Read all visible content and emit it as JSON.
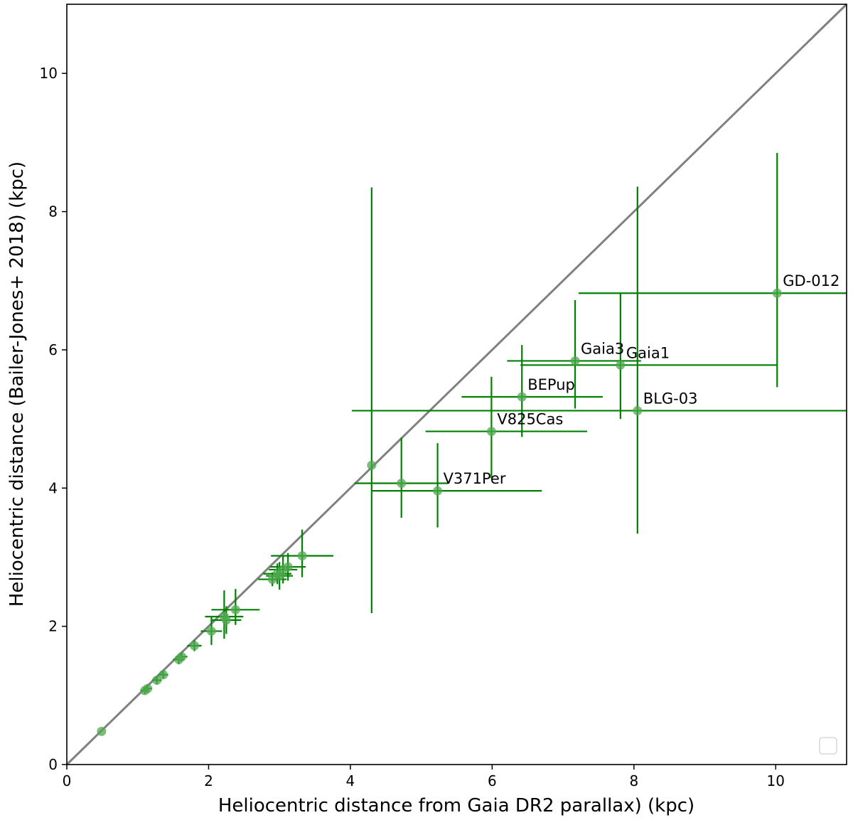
{
  "chart_data": {
    "type": "scatter",
    "title": "",
    "xlabel": "Heliocentric distance from Gaia DR2 parallax) (kpc)",
    "ylabel": "Heliocentric distance (Bailer-Jones+ 2018) (kpc)",
    "xlim": [
      0,
      11
    ],
    "ylim": [
      0,
      11
    ],
    "xticks": [
      0,
      2,
      4,
      6,
      8,
      10
    ],
    "yticks": [
      0,
      2,
      4,
      6,
      8,
      10
    ],
    "xtick_labels": [
      "0",
      "2",
      "4",
      "6",
      "8",
      "10"
    ],
    "ytick_labels": [
      "0",
      "2",
      "4",
      "6",
      "8",
      "10"
    ],
    "grid": false,
    "legend": "lower-right, empty",
    "reference_line": {
      "name": "one-to-one",
      "x": [
        0,
        11
      ],
      "y": [
        0,
        11
      ],
      "color": "#808080"
    },
    "colors": {
      "errorbar": "#008000",
      "point": "#4fa84f"
    },
    "points": [
      {
        "x": 0.49,
        "y": 0.48,
        "xerr": [
          0.0,
          0.0
        ],
        "yerr": [
          0.0,
          0.0
        ]
      },
      {
        "x": 1.1,
        "y": 1.07,
        "xerr": [
          0.06,
          0.06
        ],
        "yerr": [
          0.05,
          0.05
        ]
      },
      {
        "x": 1.14,
        "y": 1.1,
        "xerr": [
          0.06,
          0.06
        ],
        "yerr": [
          0.05,
          0.05
        ]
      },
      {
        "x": 1.27,
        "y": 1.22,
        "xerr": [
          0.07,
          0.07
        ],
        "yerr": [
          0.06,
          0.06
        ]
      },
      {
        "x": 1.36,
        "y": 1.3,
        "xerr": [
          0.07,
          0.07
        ],
        "yerr": [
          0.06,
          0.06
        ]
      },
      {
        "x": 1.58,
        "y": 1.52,
        "xerr": [
          0.08,
          0.08
        ],
        "yerr": [
          0.07,
          0.07
        ]
      },
      {
        "x": 1.62,
        "y": 1.56,
        "xerr": [
          0.08,
          0.08
        ],
        "yerr": [
          0.07,
          0.07
        ]
      },
      {
        "x": 1.8,
        "y": 1.72,
        "xerr": [
          0.1,
          0.1
        ],
        "yerr": [
          0.08,
          0.08
        ]
      },
      {
        "x": 2.04,
        "y": 1.93,
        "xerr": [
          0.15,
          0.15
        ],
        "yerr": [
          0.2,
          0.2
        ]
      },
      {
        "x": 2.22,
        "y": 2.14,
        "xerr": [
          0.27,
          0.27
        ],
        "yerr": [
          0.32,
          0.38
        ]
      },
      {
        "x": 2.25,
        "y": 2.09,
        "xerr": [
          0.21,
          0.21
        ],
        "yerr": [
          0.2,
          0.2
        ]
      },
      {
        "x": 2.38,
        "y": 2.24,
        "xerr": [
          0.34,
          0.34
        ],
        "yerr": [
          0.22,
          0.3
        ]
      },
      {
        "x": 2.9,
        "y": 2.68,
        "xerr": [
          0.2,
          0.2
        ],
        "yerr": [
          0.1,
          0.1
        ]
      },
      {
        "x": 2.97,
        "y": 2.76,
        "xerr": [
          0.2,
          0.2
        ],
        "yerr": [
          0.15,
          0.15
        ]
      },
      {
        "x": 3.0,
        "y": 2.73,
        "xerr": [
          0.19,
          0.19
        ],
        "yerr": [
          0.2,
          0.2
        ]
      },
      {
        "x": 3.05,
        "y": 2.82,
        "xerr": [
          0.2,
          0.2
        ],
        "yerr": [
          0.2,
          0.2
        ]
      },
      {
        "x": 3.12,
        "y": 2.86,
        "xerr": [
          0.25,
          0.25
        ],
        "yerr": [
          0.2,
          0.2
        ]
      },
      {
        "x": 3.32,
        "y": 3.02,
        "xerr": [
          0.44,
          0.44
        ],
        "yerr": [
          0.31,
          0.38
        ]
      },
      {
        "x": 4.3,
        "y": 4.33,
        "xerr": [
          0.0,
          0.0
        ],
        "yerr": [
          2.14,
          4.02
        ]
      },
      {
        "x": 4.72,
        "y": 4.07,
        "xerr": [
          0.66,
          0.66
        ],
        "yerr": [
          0.5,
          0.66
        ]
      },
      {
        "name": "V371Per",
        "label": "V371Per",
        "x": 5.23,
        "y": 3.96,
        "xerr": [
          0.93,
          1.47
        ],
        "yerr": [
          0.53,
          0.69
        ]
      },
      {
        "name": "V825Cas",
        "label": "V825Cas",
        "x": 5.99,
        "y": 4.82,
        "xerr": [
          0.93,
          1.35
        ],
        "yerr": [
          0.68,
          0.79
        ]
      },
      {
        "name": "BEPup",
        "label": "BEPup",
        "x": 6.42,
        "y": 5.32,
        "xerr": [
          0.85,
          1.14
        ],
        "yerr": [
          0.58,
          0.75
        ]
      },
      {
        "name": "Gaia3",
        "label": "Gaia3",
        "x": 7.17,
        "y": 5.84,
        "xerr": [
          0.96,
          0.93
        ],
        "yerr": [
          0.69,
          0.88
        ]
      },
      {
        "name": "Gaia1",
        "label": "Gaia1",
        "x": 7.81,
        "y": 5.78,
        "xerr": [
          1.41,
          2.21
        ],
        "yerr": [
          0.78,
          1.04
        ]
      },
      {
        "name": "BLG-03",
        "label": "BLG-03",
        "x": 8.05,
        "y": 5.12,
        "xerr": [
          4.03,
          3.5
        ],
        "yerr": [
          1.78,
          3.24
        ]
      },
      {
        "name": "GD-012",
        "label": "GD-012",
        "x": 10.02,
        "y": 6.82,
        "xerr": [
          2.8,
          1.5
        ],
        "yerr": [
          1.36,
          2.03
        ]
      }
    ]
  }
}
